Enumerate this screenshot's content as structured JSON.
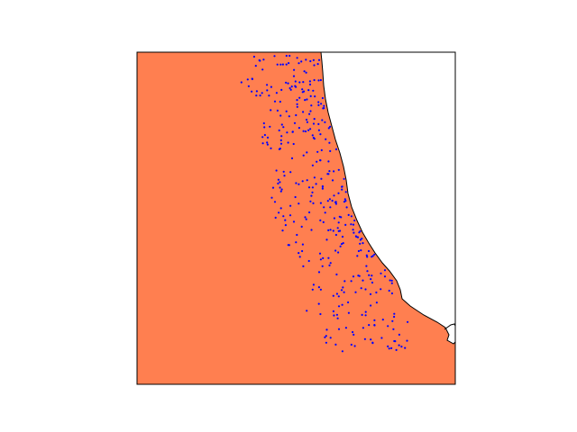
{
  "map": {
    "land_color": "#FF7F50",
    "water_color": "#FFFFFF",
    "coastline_color": "#000000",
    "point_color": "#0000FF",
    "frame_color": "#000000",
    "point_count": 378
  }
}
